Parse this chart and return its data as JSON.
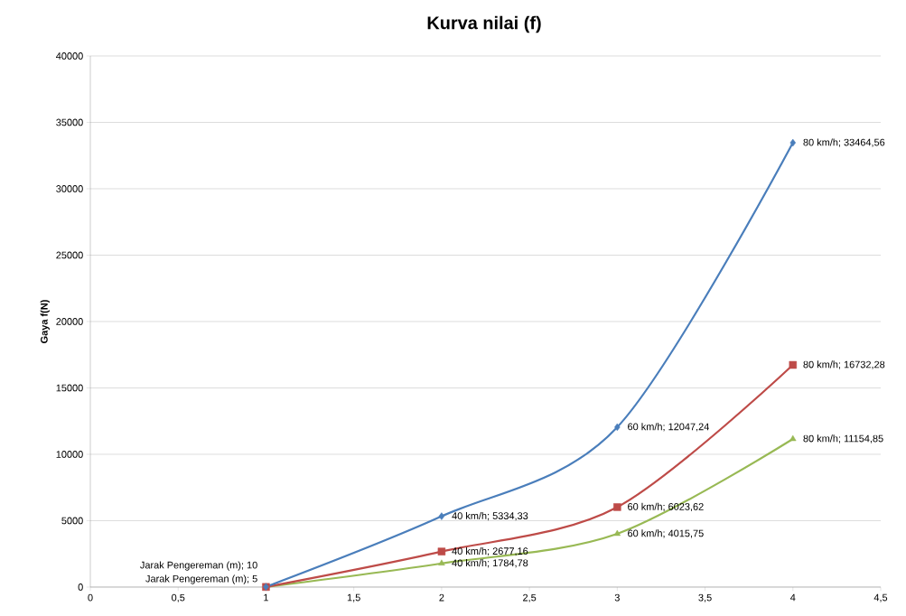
{
  "chart_data": {
    "type": "line",
    "title": "Kurva nilai (f)",
    "ylabel": "Gaya f(N)",
    "xlim": [
      0,
      4.5
    ],
    "xticks": [
      0,
      {
        "value": 0.5,
        "label": "0,5"
      },
      1,
      {
        "value": 1.5,
        "label": "1,5"
      },
      2,
      {
        "value": 2.5,
        "label": "2,5"
      },
      3,
      {
        "value": 3.5,
        "label": "3,5"
      },
      4,
      {
        "value": 4.5,
        "label": "4,5"
      }
    ],
    "ylim": [
      0,
      40000
    ],
    "yticks": [
      0,
      5000,
      10000,
      15000,
      20000,
      25000,
      30000,
      35000,
      40000
    ],
    "grid": "y",
    "series": [
      {
        "color": "#4a7ebb",
        "marker": "diamond",
        "x": [
          1,
          2,
          3,
          4
        ],
        "values": [
          20,
          5334.33,
          12047.24,
          33464.56
        ],
        "value_labels": [
          null,
          "40 km/h; 5334,33",
          "60 km/h; 12047,24",
          "80 km/h; 33464,56"
        ]
      },
      {
        "color": "#be4b48",
        "marker": "square",
        "x": [
          1,
          2,
          3,
          4
        ],
        "values": [
          10,
          2677.16,
          6023.62,
          16732.28
        ],
        "value_labels": [
          "Jarak Pengereman (m); 10",
          "40 km/h; 2677,16",
          "60 km/h; 6023,62",
          "80 km/h; 16732,28"
        ]
      },
      {
        "color": "#98b954",
        "marker": "triangle",
        "x": [
          1,
          2,
          3,
          4
        ],
        "values": [
          5,
          1784.78,
          4015.75,
          11154.85
        ],
        "value_labels": [
          "Jarak Pengereman (m); 5",
          "40 km/h; 1784,78",
          "60 km/h; 4015,75",
          "80 km/h; 11154,85"
        ]
      }
    ]
  }
}
